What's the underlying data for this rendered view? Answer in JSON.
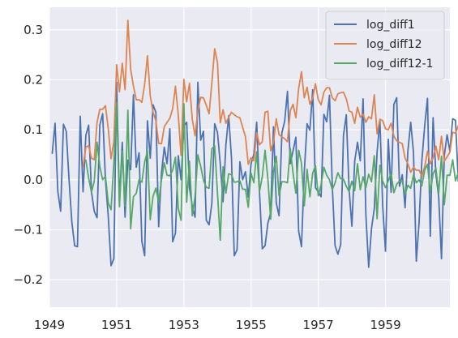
{
  "chart_data": {
    "type": "line",
    "title": "",
    "xlabel": "",
    "ylabel": "",
    "x_start": "1949-01",
    "x_end": "1960-12",
    "x_frequency": "monthly",
    "xlim": [
      "1949-01",
      "1960-12"
    ],
    "ylim": [
      -0.255,
      0.345
    ],
    "x_ticks": [
      "1949",
      "1951",
      "1953",
      "1955",
      "1957",
      "1959"
    ],
    "y_ticks": [
      "−0.2",
      "−0.1",
      "0.0",
      "0.1",
      "0.2",
      "0.3"
    ],
    "y_tick_values": [
      -0.2,
      -0.1,
      0.0,
      0.1,
      0.2,
      0.3
    ],
    "grid": true,
    "background": "#eaeaf2",
    "legend_position": "top-right",
    "series": [
      {
        "name": "log_diff1",
        "color": "#4c72b0",
        "start": "1949-02",
        "values": [
          0.053,
          0.113,
          -0.024,
          -0.063,
          0.111,
          0.097,
          0.0,
          -0.085,
          -0.132,
          -0.134,
          0.127,
          -0.024,
          0.089,
          0.109,
          -0.024,
          -0.063,
          -0.076,
          0.11,
          0.132,
          0.0,
          -0.073,
          -0.172,
          -0.158,
          0.195,
          -0.045,
          0.075,
          -0.075,
          0.039,
          0.02,
          0.17,
          0.025,
          0.054,
          -0.123,
          -0.152,
          0.118,
          0.043,
          0.15,
          0.135,
          -0.094,
          0.013,
          0.065,
          0.032,
          0.102,
          -0.124,
          -0.107,
          0.048,
          0.0,
          0.107,
          0.115,
          -0.016,
          -0.053,
          -0.075,
          0.195,
          0.079,
          0.097,
          -0.081,
          -0.09,
          -0.047,
          0.112,
          0.095,
          0.032,
          -0.044,
          0.069,
          0.128,
          0.044,
          -0.152,
          -0.14,
          0.036,
          0.0,
          0.016,
          -0.035,
          0.032,
          0.051,
          0.115,
          -0.023,
          -0.138,
          -0.132,
          -0.087,
          -0.066,
          0.106,
          -0.047,
          -0.072,
          0.094,
          0.117,
          0.177,
          0.032,
          0.058,
          0.085,
          -0.103,
          -0.134,
          0.015,
          0.112,
          0.099,
          0.18,
          -0.016,
          -0.024,
          -0.034,
          0.131,
          0.116,
          0.169,
          -0.012,
          -0.132,
          -0.149,
          -0.13,
          0.089,
          0.13,
          -0.019,
          -0.093,
          0.037,
          0.075,
          0.038,
          0.162,
          -0.07,
          -0.175,
          -0.098,
          -0.058,
          0.055,
          0.119,
          -0.052,
          -0.143,
          0.081,
          -0.025,
          0.151,
          0.164,
          -0.013,
          0.01,
          -0.056,
          0.057,
          0.115,
          0.055,
          -0.163,
          -0.085,
          0.039,
          0.108,
          0.163,
          -0.113,
          0.124,
          0.011,
          -0.034,
          -0.158,
          0.048,
          0.09,
          0.057,
          0.122,
          0.119,
          -0.003,
          0.051,
          -0.126,
          -0.094,
          0.069,
          0.067,
          0.079,
          0.012,
          0.151,
          -0.093,
          -0.117,
          0.098,
          -0.014,
          0.051,
          0.057,
          0.114,
          0.141,
          0.064,
          -0.02,
          -0.079,
          0.148,
          0.016,
          0.034,
          0.06,
          0.112,
          0.127,
          0.068
        ]
      },
      {
        "name": "log_diff12",
        "color": "#dd8452",
        "start": "1950-01",
        "values": [
          0.026,
          0.065,
          0.068,
          0.043,
          0.04,
          0.115,
          0.141,
          0.141,
          0.148,
          0.102,
          0.042,
          0.076,
          0.23,
          0.176,
          0.233,
          0.18,
          0.319,
          0.221,
          0.187,
          0.16,
          0.16,
          0.155,
          0.191,
          0.248,
          0.168,
          0.135,
          0.118,
          0.073,
          0.072,
          0.106,
          0.115,
          0.123,
          0.142,
          0.187,
          0.13,
          0.049,
          0.201,
          0.156,
          0.193,
          0.121,
          0.088,
          0.138,
          0.165,
          0.164,
          0.149,
          0.132,
          0.194,
          0.262,
          0.235,
          0.114,
          0.14,
          0.113,
          0.125,
          0.135,
          0.13,
          0.126,
          0.124,
          0.105,
          0.086,
          0.031,
          0.044,
          0.038,
          0.094,
          0.07,
          0.076,
          0.135,
          0.137,
          0.058,
          0.075,
          0.122,
          0.09,
          0.086,
          0.082,
          0.076,
          0.138,
          0.151,
          0.124,
          0.183,
          0.216,
          0.164,
          0.185,
          0.151,
          0.164,
          0.192,
          0.16,
          0.15,
          0.175,
          0.184,
          0.184,
          0.164,
          0.158,
          0.172,
          0.174,
          0.175,
          0.162,
          0.138,
          0.135,
          0.113,
          0.145,
          0.125,
          0.131,
          0.115,
          0.126,
          0.122,
          0.17,
          0.092,
          0.121,
          0.118,
          0.102,
          0.1,
          0.113,
          0.087,
          0.078,
          0.075,
          0.072,
          0.043,
          0.032,
          0.015,
          0.025,
          0.019,
          0.019,
          0.007,
          0.026,
          0.057,
          0.032,
          0.044,
          0.067,
          0.04,
          0.087,
          0.037,
          0.046,
          0.055,
          0.095,
          0.093,
          0.108,
          0.078,
          0.13,
          0.092,
          0.073,
          0.11,
          0.139,
          0.143,
          0.108,
          0.169,
          0.14,
          0.134,
          0.178,
          0.149,
          0.145,
          0.169,
          0.153,
          0.183,
          0.155,
          0.123,
          0.125,
          0.11,
          0.102,
          0.128,
          0.121,
          0.073,
          0.074,
          0.068,
          0.045,
          0.095,
          0.074,
          0.069
        ]
      },
      {
        "name": "log_diff12-1",
        "color": "#55a868",
        "start": "1950-02",
        "values": [
          0.039,
          0.003,
          -0.025,
          -0.003,
          0.075,
          0.026,
          0.0,
          0.007,
          -0.046,
          -0.06,
          0.034,
          0.154,
          -0.054,
          0.057,
          -0.053,
          0.139,
          -0.098,
          -0.034,
          -0.027,
          0.0,
          -0.005,
          0.036,
          0.057,
          -0.08,
          -0.033,
          -0.017,
          -0.045,
          -0.001,
          0.034,
          0.009,
          0.008,
          0.019,
          0.045,
          -0.057,
          -0.081,
          0.152,
          -0.045,
          0.037,
          -0.072,
          -0.033,
          0.05,
          0.027,
          -0.001,
          -0.015,
          -0.017,
          0.062,
          0.068,
          -0.027,
          -0.121,
          0.026,
          -0.027,
          0.012,
          0.01,
          -0.005,
          -0.004,
          -0.002,
          -0.019,
          -0.019,
          -0.055,
          0.013,
          -0.006,
          0.056,
          -0.024,
          0.006,
          0.059,
          0.002,
          -0.079,
          0.017,
          0.047,
          -0.032,
          -0.004,
          -0.004,
          -0.006,
          0.062,
          0.013,
          -0.027,
          0.059,
          0.033,
          -0.052,
          0.021,
          -0.034,
          0.013,
          0.028,
          -0.032,
          -0.01,
          0.025,
          0.009,
          0.0,
          -0.02,
          -0.006,
          0.014,
          0.002,
          0.001,
          -0.013,
          -0.024,
          -0.003,
          -0.022,
          0.032,
          -0.02,
          0.006,
          -0.016,
          0.011,
          -0.004,
          0.048,
          -0.078,
          0.029,
          -0.003,
          -0.016,
          -0.002,
          0.013,
          -0.026,
          -0.009,
          -0.003,
          -0.003,
          -0.029,
          -0.011,
          -0.017,
          0.01,
          -0.006,
          0.0,
          -0.012,
          0.019,
          0.031,
          -0.025,
          0.012,
          0.023,
          -0.027,
          0.047,
          -0.05,
          0.009,
          0.009,
          0.04,
          -0.002,
          0.015,
          -0.03,
          0.052,
          -0.038,
          -0.019,
          0.037,
          0.029,
          0.004,
          -0.035,
          0.061,
          -0.029,
          -0.006,
          0.044,
          -0.029,
          -0.004,
          0.024,
          -0.016,
          0.03,
          -0.028,
          -0.032,
          0.002,
          -0.015,
          -0.008,
          0.026,
          -0.007,
          -0.048,
          0.001,
          -0.006,
          -0.023,
          0.05,
          -0.021,
          -0.005
        ]
      }
    ]
  }
}
